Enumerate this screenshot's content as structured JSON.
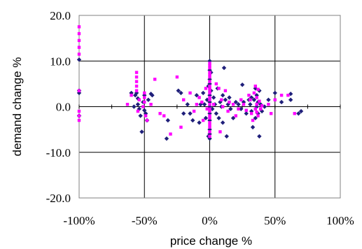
{
  "chart_data": {
    "type": "scatter",
    "title": "",
    "xlabel": "price change %",
    "ylabel": "demand change %",
    "xlim": [
      -100,
      100
    ],
    "ylim": [
      -20,
      20
    ],
    "x_ticks": [
      -100,
      -50,
      0,
      50,
      100
    ],
    "x_tick_labels": [
      "-100%",
      "-50%",
      "0%",
      "50%",
      "100%"
    ],
    "y_ticks": [
      -20,
      -10,
      0,
      10,
      20
    ],
    "y_tick_labels": [
      "-20.0",
      "-10.0",
      "0.0",
      "10.0",
      "20.0"
    ],
    "grid": true,
    "legend": "none",
    "series": [
      {
        "color": "#1f1f7a",
        "marker": "diamond",
        "points": [
          [
            -100,
            10.3
          ],
          [
            -100,
            3.5
          ],
          [
            -100,
            3.0
          ],
          [
            -100,
            -2.0
          ],
          [
            -60,
            3.0
          ],
          [
            -58,
            0.0
          ],
          [
            -57,
            2.5
          ],
          [
            -56,
            3.0
          ],
          [
            -55,
            1.8
          ],
          [
            -55,
            0.5
          ],
          [
            -54,
            -0.5
          ],
          [
            -53,
            -2.0
          ],
          [
            -52,
            -5.5
          ],
          [
            -51,
            1.0
          ],
          [
            -50,
            2.5
          ],
          [
            -50,
            -0.8
          ],
          [
            -49,
            -1.5
          ],
          [
            -48,
            -3.0
          ],
          [
            -47,
            1.5
          ],
          [
            -45,
            2.8
          ],
          [
            -44,
            2.5
          ],
          [
            -33,
            -7.0
          ],
          [
            -32,
            -3.0
          ],
          [
            -24,
            3.5
          ],
          [
            -22,
            3.0
          ],
          [
            -20,
            -1.5
          ],
          [
            -17,
            0.5
          ],
          [
            -15,
            -1.5
          ],
          [
            -13,
            -3.0
          ],
          [
            -10,
            2.5
          ],
          [
            -8,
            -3.5
          ],
          [
            -7,
            0.5
          ],
          [
            -5,
            3.0
          ],
          [
            -4,
            0.5
          ],
          [
            -3,
            -2.5
          ],
          [
            -2,
            1.5
          ],
          [
            -1,
            4.5
          ],
          [
            -1,
            -6.5
          ],
          [
            0,
            10.0
          ],
          [
            0,
            8.0
          ],
          [
            0,
            6.0
          ],
          [
            0,
            5.0
          ],
          [
            0,
            2.5
          ],
          [
            0,
            1.0
          ],
          [
            0,
            0.0
          ],
          [
            0,
            -1.5
          ],
          [
            0,
            -3.0
          ],
          [
            0,
            -5.0
          ],
          [
            0,
            -6.0
          ],
          [
            0,
            -7.0
          ],
          [
            1,
            7.5
          ],
          [
            1,
            3.5
          ],
          [
            2,
            -0.5
          ],
          [
            3,
            2.0
          ],
          [
            4,
            0.5
          ],
          [
            5,
            -1.5
          ],
          [
            6,
            4.0
          ],
          [
            7,
            -2.5
          ],
          [
            8,
            1.0
          ],
          [
            9,
            0.0
          ],
          [
            10,
            2.5
          ],
          [
            10,
            -3.5
          ],
          [
            11,
            8.5
          ],
          [
            12,
            1.5
          ],
          [
            13,
            -6.5
          ],
          [
            14,
            0.5
          ],
          [
            15,
            2.0
          ],
          [
            16,
            -0.5
          ],
          [
            18,
            -2.5
          ],
          [
            20,
            1.0
          ],
          [
            22,
            0.5
          ],
          [
            24,
            -0.5
          ],
          [
            25,
            4.8
          ],
          [
            26,
            1.0
          ],
          [
            28,
            -1.5
          ],
          [
            30,
            1.5
          ],
          [
            31,
            0.5
          ],
          [
            32,
            2.0
          ],
          [
            32,
            -1.0
          ],
          [
            33,
            -4.5
          ],
          [
            34,
            1.5
          ],
          [
            35,
            4.0
          ],
          [
            35,
            -2.5
          ],
          [
            36,
            0.0
          ],
          [
            36,
            2.5
          ],
          [
            37,
            1.0
          ],
          [
            37,
            -1.5
          ],
          [
            38,
            -6.5
          ],
          [
            38,
            3.5
          ],
          [
            39,
            0.5
          ],
          [
            40,
            -1.0
          ],
          [
            42,
            0.0
          ],
          [
            45,
            1.5
          ],
          [
            50,
            3.0
          ],
          [
            55,
            1.0
          ],
          [
            62,
            2.8
          ],
          [
            62,
            1.5
          ],
          [
            68,
            -1.5
          ],
          [
            70,
            -1.0
          ]
        ]
      },
      {
        "color": "#ff00ff",
        "marker": "square",
        "points": [
          [
            -100,
            17.5
          ],
          [
            -100,
            16.0
          ],
          [
            -100,
            14.5
          ],
          [
            -100,
            13.0
          ],
          [
            -100,
            11.5
          ],
          [
            -100,
            3.5
          ],
          [
            -100,
            -1.0
          ],
          [
            -100,
            -2.0
          ],
          [
            -100,
            -3.0
          ],
          [
            -63,
            0.5
          ],
          [
            -60,
            2.5
          ],
          [
            -56,
            7.5
          ],
          [
            -56,
            6.5
          ],
          [
            -56,
            5.5
          ],
          [
            -56,
            4.5
          ],
          [
            -56,
            3.5
          ],
          [
            -55,
            -1.0
          ],
          [
            -54,
            1.5
          ],
          [
            -51,
            0.0
          ],
          [
            -50,
            3.0
          ],
          [
            -50,
            2.0
          ],
          [
            -50,
            1.0
          ],
          [
            -49,
            -2.0
          ],
          [
            -48,
            -3.0
          ],
          [
            -45,
            0.5
          ],
          [
            -42,
            6.0
          ],
          [
            -38,
            -1.5
          ],
          [
            -35,
            -2.0
          ],
          [
            -30,
            -6.0
          ],
          [
            -25,
            6.5
          ],
          [
            -22,
            -4.5
          ],
          [
            -20,
            1.5
          ],
          [
            -15,
            3.0
          ],
          [
            -12,
            -1.0
          ],
          [
            -10,
            0.5
          ],
          [
            -8,
            2.0
          ],
          [
            -6,
            1.0
          ],
          [
            -5,
            -3.0
          ],
          [
            -3,
            4.0
          ],
          [
            -2,
            -0.5
          ],
          [
            0,
            9.5
          ],
          [
            0,
            9.0
          ],
          [
            0,
            8.5
          ],
          [
            0,
            7.5
          ],
          [
            0,
            7.0
          ],
          [
            0,
            6.5
          ],
          [
            0,
            5.5
          ],
          [
            0,
            4.5
          ],
          [
            0,
            4.0
          ],
          [
            0,
            3.5
          ],
          [
            0,
            3.0
          ],
          [
            0,
            2.0
          ],
          [
            0,
            1.5
          ],
          [
            0,
            0.5
          ],
          [
            0,
            -0.5
          ],
          [
            0,
            -1.0
          ],
          [
            0,
            -2.0
          ],
          [
            0,
            -2.5
          ],
          [
            0,
            -3.5
          ],
          [
            0,
            -4.0
          ],
          [
            0,
            -4.5
          ],
          [
            0,
            -5.5
          ],
          [
            0,
            -6.5
          ],
          [
            3,
            0.5
          ],
          [
            5,
            5.0
          ],
          [
            7,
            4.0
          ],
          [
            8,
            -5.5
          ],
          [
            9,
            1.5
          ],
          [
            10,
            0.0
          ],
          [
            12,
            3.5
          ],
          [
            14,
            -1.0
          ],
          [
            15,
            1.0
          ],
          [
            18,
            0.5
          ],
          [
            20,
            -2.0
          ],
          [
            22,
            -0.5
          ],
          [
            24,
            1.5
          ],
          [
            26,
            0.5
          ],
          [
            28,
            -0.8
          ],
          [
            30,
            2.5
          ],
          [
            31,
            1.5
          ],
          [
            32,
            -1.5
          ],
          [
            33,
            -3.0
          ],
          [
            34,
            3.0
          ],
          [
            35,
            4.5
          ],
          [
            35,
            -0.5
          ],
          [
            36,
            2.0
          ],
          [
            36,
            0.5
          ],
          [
            36,
            -1.2
          ],
          [
            37,
            3.8
          ],
          [
            37,
            -2.0
          ],
          [
            38,
            1.2
          ],
          [
            39,
            -0.5
          ],
          [
            40,
            0.2
          ],
          [
            45,
            0.5
          ],
          [
            47,
            -1.5
          ],
          [
            50,
            1.5
          ],
          [
            55,
            2.5
          ],
          [
            60,
            2.5
          ],
          [
            65,
            -1.5
          ]
        ]
      }
    ]
  }
}
